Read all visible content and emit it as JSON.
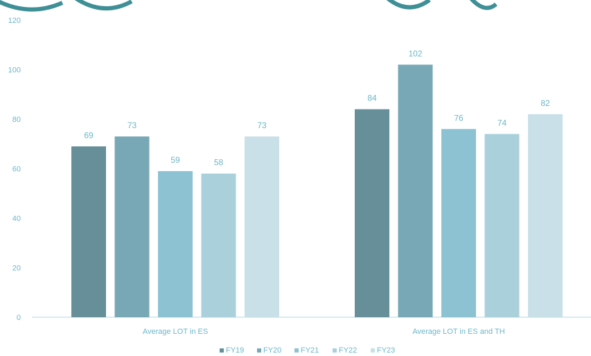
{
  "chart_data": {
    "type": "bar",
    "categories": [
      "Average LOT in ES",
      "Average LOT in ES and TH"
    ],
    "series": [
      {
        "name": "FY19",
        "values": [
          69,
          84
        ],
        "color": "#668f9a"
      },
      {
        "name": "FY20",
        "values": [
          73,
          102
        ],
        "color": "#78a8b6"
      },
      {
        "name": "FY21",
        "values": [
          59,
          76
        ],
        "color": "#8cc2d2"
      },
      {
        "name": "FY22",
        "values": [
          58,
          74
        ],
        "color": "#aad0dc"
      },
      {
        "name": "FY23",
        "values": [
          73,
          82
        ],
        "color": "#c9e0e8"
      }
    ],
    "ylim": [
      0,
      120
    ],
    "yticks": [
      0,
      20,
      40,
      60,
      80,
      100,
      120
    ],
    "grid": false,
    "legend": "bottom",
    "data_labels": true,
    "title_color": "#3f8f96",
    "tick_color": "#6bb7c9",
    "axis_line_color": "#cfe3ea"
  }
}
